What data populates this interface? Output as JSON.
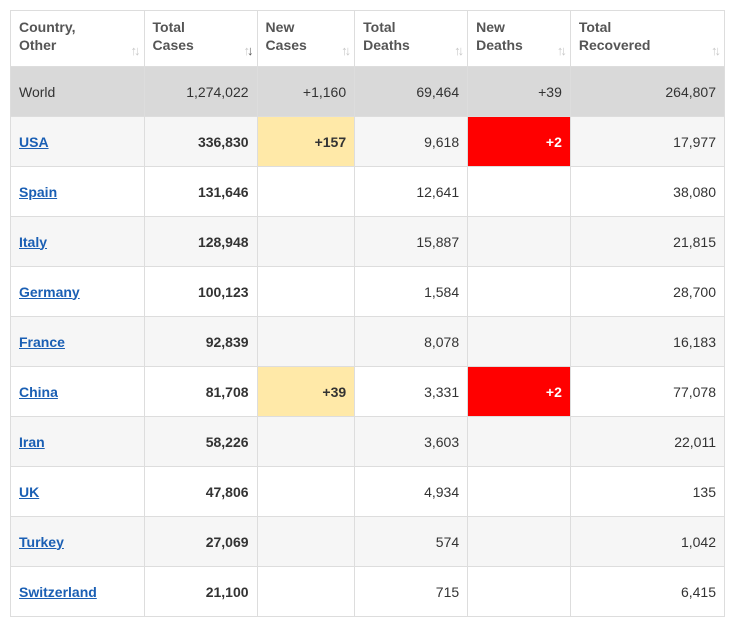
{
  "columns": [
    {
      "label": "Country,\nOther",
      "sort": "none"
    },
    {
      "label": "Total\nCases",
      "sort": "desc"
    },
    {
      "label": "New\nCases",
      "sort": "none"
    },
    {
      "label": "Total\nDeaths",
      "sort": "none"
    },
    {
      "label": "New\nDeaths",
      "sort": "none"
    },
    {
      "label": "Total\nRecovered",
      "sort": "none"
    }
  ],
  "world_row": {
    "name": "World",
    "total_cases": "1,274,022",
    "new_cases": "+1,160",
    "total_deaths": "69,464",
    "new_deaths": "+39",
    "total_recovered": "264,807"
  },
  "rows": [
    {
      "name": "USA",
      "total_cases": "336,830",
      "new_cases": "+157",
      "total_deaths": "9,618",
      "new_deaths": "+2",
      "total_recovered": "17,977",
      "new_cases_hl": "yellow",
      "new_deaths_hl": "red"
    },
    {
      "name": "Spain",
      "total_cases": "131,646",
      "new_cases": "",
      "total_deaths": "12,641",
      "new_deaths": "",
      "total_recovered": "38,080"
    },
    {
      "name": "Italy",
      "total_cases": "128,948",
      "new_cases": "",
      "total_deaths": "15,887",
      "new_deaths": "",
      "total_recovered": "21,815"
    },
    {
      "name": "Germany",
      "total_cases": "100,123",
      "new_cases": "",
      "total_deaths": "1,584",
      "new_deaths": "",
      "total_recovered": "28,700"
    },
    {
      "name": "France",
      "total_cases": "92,839",
      "new_cases": "",
      "total_deaths": "8,078",
      "new_deaths": "",
      "total_recovered": "16,183"
    },
    {
      "name": "China",
      "total_cases": "81,708",
      "new_cases": "+39",
      "total_deaths": "3,331",
      "new_deaths": "+2",
      "total_recovered": "77,078",
      "new_cases_hl": "yellow",
      "new_deaths_hl": "red"
    },
    {
      "name": "Iran",
      "total_cases": "58,226",
      "new_cases": "",
      "total_deaths": "3,603",
      "new_deaths": "",
      "total_recovered": "22,011"
    },
    {
      "name": "UK",
      "total_cases": "47,806",
      "new_cases": "",
      "total_deaths": "4,934",
      "new_deaths": "",
      "total_recovered": "135"
    },
    {
      "name": "Turkey",
      "total_cases": "27,069",
      "new_cases": "",
      "total_deaths": "574",
      "new_deaths": "",
      "total_recovered": "1,042"
    },
    {
      "name": "Switzerland",
      "total_cases": "21,100",
      "new_cases": "",
      "total_deaths": "715",
      "new_deaths": "",
      "total_recovered": "6,415"
    }
  ],
  "colors": {
    "header_bg": "#ffffff",
    "world_row_bg": "#d9d9d9",
    "row_alt_bg": "#f6f6f6",
    "border": "#dddddd",
    "link": "#1a5fb4",
    "highlight_yellow": "#ffe9a8",
    "highlight_red": "#ff0000",
    "sort_inactive": "#c8c8c8",
    "sort_active": "#555555"
  }
}
